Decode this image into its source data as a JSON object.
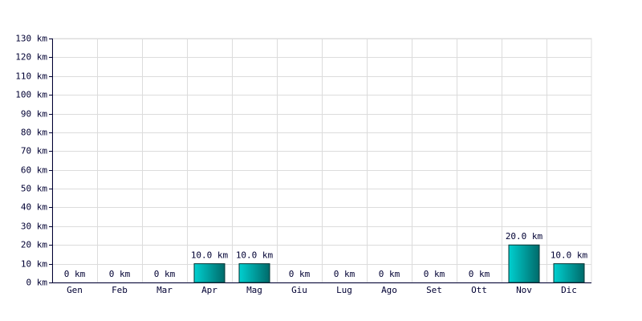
{
  "chart_data": {
    "type": "bar",
    "categories": [
      "Gen",
      "Feb",
      "Mar",
      "Apr",
      "Mag",
      "Giu",
      "Lug",
      "Ago",
      "Set",
      "Ott",
      "Nov",
      "Dic"
    ],
    "values": [
      0,
      0,
      0,
      10,
      10,
      0,
      0,
      0,
      0,
      0,
      20,
      10
    ],
    "value_labels": [
      "0 km",
      "0 km",
      "0 km",
      "10.0 km",
      "10.0 km",
      "0 km",
      "0 km",
      "0 km",
      "0 km",
      "0 km",
      "20.0 km",
      "10.0 km"
    ],
    "color": "#00d0d0",
    "ylim": [
      0,
      130
    ],
    "yticks": [
      {
        "value": 0,
        "label": "0 km"
      },
      {
        "value": 10,
        "label": "10 km"
      },
      {
        "value": 20,
        "label": "20 km"
      },
      {
        "value": 30,
        "label": "30 km"
      },
      {
        "value": 40,
        "label": "40 km"
      },
      {
        "value": 50,
        "label": "50 km"
      },
      {
        "value": 60,
        "label": "60 km"
      },
      {
        "value": 70,
        "label": "70 km"
      },
      {
        "value": 80,
        "label": "80 km"
      },
      {
        "value": 90,
        "label": "90 km"
      },
      {
        "value": 100,
        "label": "100 km"
      },
      {
        "value": 110,
        "label": "110 km"
      },
      {
        "value": 120,
        "label": "120 km"
      },
      {
        "value": 130,
        "label": "130 km"
      }
    ],
    "grid": true
  }
}
